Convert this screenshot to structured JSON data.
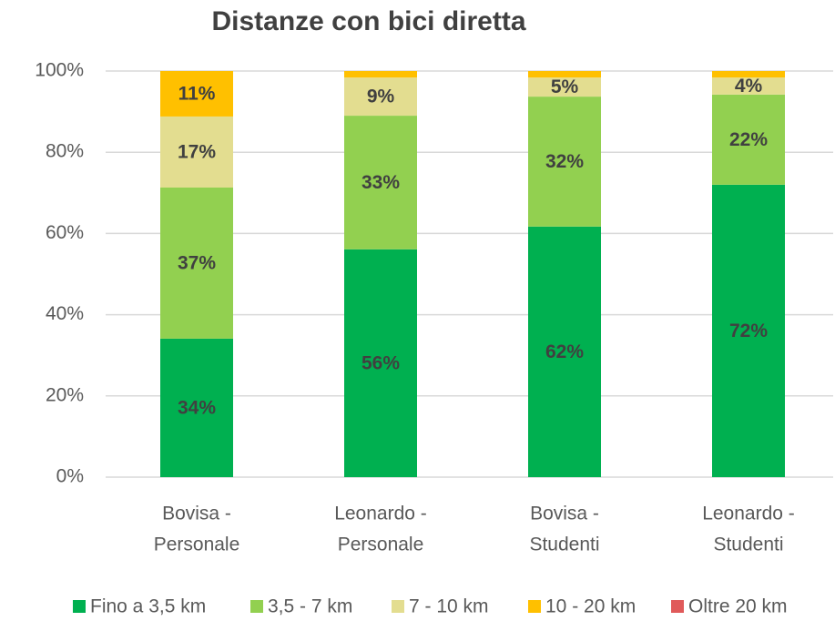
{
  "chart_data": {
    "type": "stacked_bar",
    "title": "Distanze con bici diretta",
    "categories": [
      [
        "Bovisa -",
        "Personale"
      ],
      [
        "Leonardo -",
        "Personale"
      ],
      [
        "Bovisa -",
        "Studenti"
      ],
      [
        "Leonardo -",
        "Studenti"
      ]
    ],
    "series": [
      {
        "name": "Fino a 3,5 km",
        "color": "#00b050",
        "values": [
          34.1,
          56.1,
          61.7,
          72.0
        ],
        "value_labels": [
          "34%",
          "56%",
          "62%",
          "72%"
        ]
      },
      {
        "name": "3,5 - 7 km",
        "color": "#92d050",
        "values": [
          37.2,
          32.9,
          32.0,
          22.2
        ],
        "value_labels": [
          "37%",
          "33%",
          "32%",
          "22%"
        ]
      },
      {
        "name": "7 - 10 km",
        "color": "#e3dd90",
        "values": [
          17.5,
          9.4,
          4.7,
          4.2
        ],
        "value_labels": [
          "17%",
          "9%",
          "5%",
          "4%"
        ]
      },
      {
        "name": "10 - 20 km",
        "color": "#ffc000",
        "values": [
          11.2,
          1.6,
          1.6,
          1.6
        ],
        "value_labels": [
          "11%",
          null,
          null,
          null
        ]
      },
      {
        "name": "Oltre 20 km",
        "color": "#e05a5a",
        "values": [
          0,
          0,
          0,
          0
        ]
      }
    ],
    "ylim": [
      0,
      100
    ],
    "yticks": [
      {
        "value": 0,
        "label": "0%"
      },
      {
        "value": 20,
        "label": "20%"
      },
      {
        "value": 40,
        "label": "40%"
      },
      {
        "value": 60,
        "label": "60%"
      },
      {
        "value": 80,
        "label": "80%"
      },
      {
        "value": 100,
        "label": "100%"
      }
    ],
    "grid": true,
    "legend": "bottom"
  }
}
